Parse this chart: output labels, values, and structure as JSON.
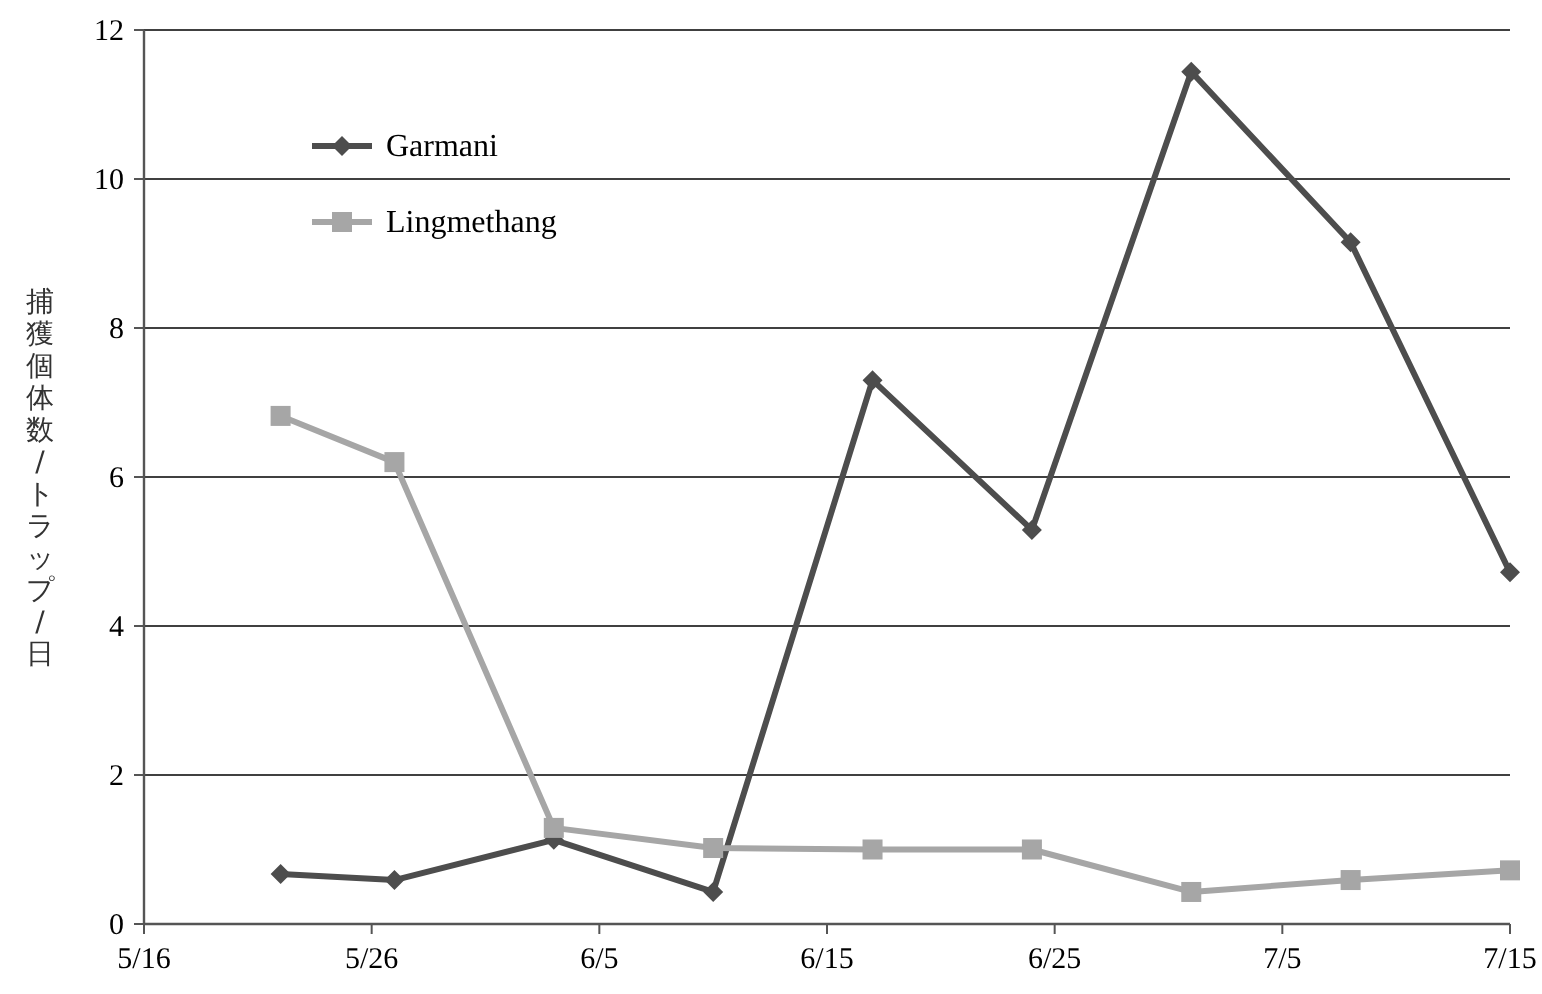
{
  "chart_data": {
    "type": "line",
    "ylabel": "捕獲個体数/トラップ/日",
    "x": [
      "--05-22",
      "--05-27",
      "--06-03",
      "--06-10",
      "--06-17",
      "--06-24",
      "--07-01",
      "--07-08",
      "--07-15"
    ],
    "series": [
      {
        "name": "Garmani",
        "color": "#4d4d4d",
        "marker": "diamond",
        "values": [
          0.67,
          0.59,
          1.13,
          0.43,
          7.3,
          5.29,
          11.44,
          9.15,
          4.72
        ]
      },
      {
        "name": "Lingmethang",
        "color": "#a6a6a6",
        "marker": "square",
        "values": [
          6.82,
          6.2,
          1.29,
          1.02,
          1.0,
          1.0,
          0.43,
          0.59,
          0.72
        ]
      }
    ],
    "xlim": [
      "--05-16",
      "--07-15"
    ],
    "xticks": [
      {
        "value": "--05-16",
        "label": "5/16"
      },
      {
        "value": "--05-26",
        "label": "5/26"
      },
      {
        "value": "--06-05",
        "label": "6/5"
      },
      {
        "value": "--06-15",
        "label": "6/15"
      },
      {
        "value": "--06-25",
        "label": "6/25"
      },
      {
        "value": "--07-05",
        "label": "7/5"
      },
      {
        "value": "--07-15",
        "label": "7/15"
      }
    ],
    "ylim": [
      0,
      12
    ],
    "yticks": [
      0,
      2,
      4,
      6,
      8,
      10,
      12
    ],
    "grid": "y",
    "legend": "top left"
  }
}
